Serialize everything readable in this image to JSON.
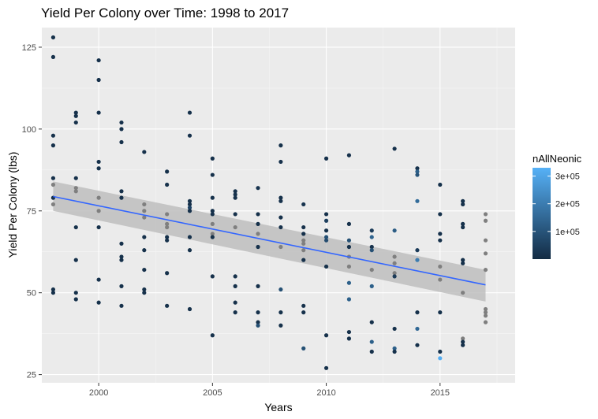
{
  "chart_data": {
    "type": "scatter",
    "title": "Yield Per Colony over Time: 1998 to 2017",
    "xlabel": "Years",
    "ylabel": "Yield Per Colony (lbs)",
    "xlim": [
      1997.5,
      2018.3
    ],
    "ylim": [
      22.5,
      131
    ],
    "x_ticks": [
      2000,
      2005,
      2010,
      2015
    ],
    "x_tick_labels": [
      "2000",
      "2005",
      "2010",
      "2015"
    ],
    "y_ticks": [
      25,
      50,
      75,
      100,
      125
    ],
    "y_tick_labels": [
      "25",
      "50",
      "75",
      "100",
      "125"
    ],
    "grid": true,
    "legend": {
      "title": "nAllNeonic",
      "type": "colorbar",
      "placement": "right",
      "range": [
        0,
        330000
      ],
      "ticks": [
        100000,
        200000,
        300000
      ],
      "tick_labels": [
        "1e+05",
        "2e+05",
        "3e+05"
      ],
      "low_color": "#132B43",
      "high_color": "#56B1F7",
      "na_color": "#7f7f7f"
    },
    "trend_line": {
      "method": "lm",
      "color": "#3366FF",
      "ci_color": "#bebebe",
      "points": [
        [
          1998,
          79.4
        ],
        [
          2017,
          52.4
        ]
      ],
      "ci_lower": [
        [
          1998,
          75
        ],
        [
          2017,
          47.3
        ]
      ],
      "ci_upper": [
        [
          1998,
          84
        ],
        [
          2017,
          57
        ]
      ]
    },
    "points": [
      {
        "x": 1998,
        "y": 128,
        "c": 15000
      },
      {
        "x": 1998,
        "y": 122,
        "c": 15000
      },
      {
        "x": 1998,
        "y": 98,
        "c": 15000
      },
      {
        "x": 1998,
        "y": 95,
        "c": 15000
      },
      {
        "x": 1998,
        "y": 85,
        "c": 15000
      },
      {
        "x": 1998,
        "y": 83,
        "c": null
      },
      {
        "x": 1998,
        "y": 79,
        "c": 15000
      },
      {
        "x": 1998,
        "y": 77,
        "c": null
      },
      {
        "x": 1998,
        "y": 51,
        "c": 15000
      },
      {
        "x": 1998,
        "y": 50,
        "c": 15000
      },
      {
        "x": 1999,
        "y": 105,
        "c": 15000
      },
      {
        "x": 1999,
        "y": 104,
        "c": 15000
      },
      {
        "x": 1999,
        "y": 102,
        "c": 15000
      },
      {
        "x": 1999,
        "y": 85,
        "c": 15000
      },
      {
        "x": 1999,
        "y": 82,
        "c": null
      },
      {
        "x": 1999,
        "y": 81,
        "c": null
      },
      {
        "x": 1999,
        "y": 70,
        "c": 15000
      },
      {
        "x": 1999,
        "y": 60,
        "c": 15000
      },
      {
        "x": 1999,
        "y": 50,
        "c": 15000
      },
      {
        "x": 1999,
        "y": 48,
        "c": 15000
      },
      {
        "x": 2000,
        "y": 121,
        "c": 15000
      },
      {
        "x": 2000,
        "y": 115,
        "c": 15000
      },
      {
        "x": 2000,
        "y": 105,
        "c": 15000
      },
      {
        "x": 2000,
        "y": 90,
        "c": 15000
      },
      {
        "x": 2000,
        "y": 88,
        "c": 15000
      },
      {
        "x": 2000,
        "y": 79,
        "c": null
      },
      {
        "x": 2000,
        "y": 75,
        "c": null
      },
      {
        "x": 2000,
        "y": 70,
        "c": 15000
      },
      {
        "x": 2000,
        "y": 54,
        "c": 15000
      },
      {
        "x": 2000,
        "y": 47,
        "c": 15000
      },
      {
        "x": 2001,
        "y": 102,
        "c": 15000
      },
      {
        "x": 2001,
        "y": 100,
        "c": 15000
      },
      {
        "x": 2001,
        "y": 96,
        "c": 15000
      },
      {
        "x": 2001,
        "y": 81,
        "c": 15000
      },
      {
        "x": 2001,
        "y": 79,
        "c": 15000
      },
      {
        "x": 2001,
        "y": 65,
        "c": 15000
      },
      {
        "x": 2001,
        "y": 61,
        "c": 15000
      },
      {
        "x": 2001,
        "y": 60,
        "c": 15000
      },
      {
        "x": 2001,
        "y": 52,
        "c": 15000
      },
      {
        "x": 2001,
        "y": 46,
        "c": 15000
      },
      {
        "x": 2002,
        "y": 93,
        "c": 15000
      },
      {
        "x": 2002,
        "y": 77,
        "c": null
      },
      {
        "x": 2002,
        "y": 75,
        "c": null
      },
      {
        "x": 2002,
        "y": 73,
        "c": null
      },
      {
        "x": 2002,
        "y": 67,
        "c": 15000
      },
      {
        "x": 2002,
        "y": 63,
        "c": 15000
      },
      {
        "x": 2002,
        "y": 57,
        "c": 15000
      },
      {
        "x": 2002,
        "y": 51,
        "c": 15000
      },
      {
        "x": 2002,
        "y": 50,
        "c": 15000
      },
      {
        "x": 2003,
        "y": 87,
        "c": 15000
      },
      {
        "x": 2003,
        "y": 83,
        "c": 15000
      },
      {
        "x": 2003,
        "y": 74,
        "c": null
      },
      {
        "x": 2003,
        "y": 71,
        "c": null
      },
      {
        "x": 2003,
        "y": 70,
        "c": null
      },
      {
        "x": 2003,
        "y": 67,
        "c": 15000
      },
      {
        "x": 2003,
        "y": 66,
        "c": 15000
      },
      {
        "x": 2003,
        "y": 56,
        "c": 15000
      },
      {
        "x": 2003,
        "y": 46,
        "c": 15000
      },
      {
        "x": 2004,
        "y": 105,
        "c": 15000
      },
      {
        "x": 2004,
        "y": 98,
        "c": 15000
      },
      {
        "x": 2004,
        "y": 78,
        "c": 15000
      },
      {
        "x": 2004,
        "y": 77,
        "c": 15000
      },
      {
        "x": 2004,
        "y": 76,
        "c": 60000
      },
      {
        "x": 2004,
        "y": 75,
        "c": 15000
      },
      {
        "x": 2004,
        "y": 67,
        "c": 15000
      },
      {
        "x": 2004,
        "y": 63,
        "c": 15000
      },
      {
        "x": 2004,
        "y": 45,
        "c": 15000
      },
      {
        "x": 2005,
        "y": 91,
        "c": 15000
      },
      {
        "x": 2005,
        "y": 86,
        "c": 15000
      },
      {
        "x": 2005,
        "y": 79,
        "c": 15000
      },
      {
        "x": 2005,
        "y": 75,
        "c": 15000
      },
      {
        "x": 2005,
        "y": 74,
        "c": 15000
      },
      {
        "x": 2005,
        "y": 71,
        "c": null
      },
      {
        "x": 2005,
        "y": 68,
        "c": null
      },
      {
        "x": 2005,
        "y": 67,
        "c": 15000
      },
      {
        "x": 2005,
        "y": 55,
        "c": 15000
      },
      {
        "x": 2005,
        "y": 37,
        "c": 15000
      },
      {
        "x": 2006,
        "y": 81,
        "c": 15000
      },
      {
        "x": 2006,
        "y": 80,
        "c": 15000
      },
      {
        "x": 2006,
        "y": 79,
        "c": 15000
      },
      {
        "x": 2006,
        "y": 74,
        "c": 15000
      },
      {
        "x": 2006,
        "y": 70,
        "c": null
      },
      {
        "x": 2006,
        "y": 55,
        "c": 15000
      },
      {
        "x": 2006,
        "y": 52,
        "c": 15000
      },
      {
        "x": 2006,
        "y": 47,
        "c": 15000
      },
      {
        "x": 2006,
        "y": 44,
        "c": 15000
      },
      {
        "x": 2007,
        "y": 82,
        "c": 20000
      },
      {
        "x": 2007,
        "y": 74,
        "c": 15000
      },
      {
        "x": 2007,
        "y": 71,
        "c": 15000
      },
      {
        "x": 2007,
        "y": 68,
        "c": null
      },
      {
        "x": 2007,
        "y": 64,
        "c": 15000
      },
      {
        "x": 2007,
        "y": 52,
        "c": 15000
      },
      {
        "x": 2007,
        "y": 44,
        "c": 15000
      },
      {
        "x": 2007,
        "y": 41,
        "c": 15000
      },
      {
        "x": 2007,
        "y": 40,
        "c": 90000
      },
      {
        "x": 2008,
        "y": 95,
        "c": 15000
      },
      {
        "x": 2008,
        "y": 90,
        "c": 15000
      },
      {
        "x": 2008,
        "y": 79,
        "c": 15000
      },
      {
        "x": 2008,
        "y": 78,
        "c": 15000
      },
      {
        "x": 2008,
        "y": 73,
        "c": 15000
      },
      {
        "x": 2008,
        "y": 70,
        "c": 15000
      },
      {
        "x": 2008,
        "y": 64,
        "c": null
      },
      {
        "x": 2008,
        "y": 51,
        "c": 90000
      },
      {
        "x": 2008,
        "y": 44,
        "c": 15000
      },
      {
        "x": 2008,
        "y": 40,
        "c": 15000
      },
      {
        "x": 2009,
        "y": 77,
        "c": 20000
      },
      {
        "x": 2009,
        "y": 70,
        "c": 15000
      },
      {
        "x": 2009,
        "y": 68,
        "c": 15000
      },
      {
        "x": 2009,
        "y": 66,
        "c": null
      },
      {
        "x": 2009,
        "y": 65,
        "c": null
      },
      {
        "x": 2009,
        "y": 63,
        "c": null
      },
      {
        "x": 2009,
        "y": 60,
        "c": 15000
      },
      {
        "x": 2009,
        "y": 46,
        "c": 15000
      },
      {
        "x": 2009,
        "y": 44,
        "c": 15000
      },
      {
        "x": 2009,
        "y": 33,
        "c": 90000
      },
      {
        "x": 2010,
        "y": 91,
        "c": 15000
      },
      {
        "x": 2010,
        "y": 74,
        "c": 15000
      },
      {
        "x": 2010,
        "y": 72,
        "c": 50000
      },
      {
        "x": 2010,
        "y": 69,
        "c": 15000
      },
      {
        "x": 2010,
        "y": 67,
        "c": 90000
      },
      {
        "x": 2010,
        "y": 66,
        "c": 80000
      },
      {
        "x": 2010,
        "y": 58,
        "c": 15000
      },
      {
        "x": 2010,
        "y": 37,
        "c": 15000
      },
      {
        "x": 2010,
        "y": 27,
        "c": 15000
      },
      {
        "x": 2011,
        "y": 92,
        "c": 15000
      },
      {
        "x": 2011,
        "y": 71,
        "c": 15000
      },
      {
        "x": 2011,
        "y": 66,
        "c": 90000
      },
      {
        "x": 2011,
        "y": 64,
        "c": 15000
      },
      {
        "x": 2011,
        "y": 61,
        "c": null
      },
      {
        "x": 2011,
        "y": 58,
        "c": null
      },
      {
        "x": 2011,
        "y": 53,
        "c": 130000
      },
      {
        "x": 2011,
        "y": 48,
        "c": 130000
      },
      {
        "x": 2011,
        "y": 38,
        "c": 15000
      },
      {
        "x": 2011,
        "y": 36,
        "c": 15000
      },
      {
        "x": 2012,
        "y": 69,
        "c": 40000
      },
      {
        "x": 2012,
        "y": 67,
        "c": 140000
      },
      {
        "x": 2012,
        "y": 64,
        "c": 15000
      },
      {
        "x": 2012,
        "y": 63,
        "c": 90000
      },
      {
        "x": 2012,
        "y": 57,
        "c": null
      },
      {
        "x": 2012,
        "y": 52,
        "c": 130000
      },
      {
        "x": 2012,
        "y": 41,
        "c": 15000
      },
      {
        "x": 2012,
        "y": 35,
        "c": 130000
      },
      {
        "x": 2012,
        "y": 32,
        "c": 15000
      },
      {
        "x": 2013,
        "y": 94,
        "c": 15000
      },
      {
        "x": 2013,
        "y": 69,
        "c": 120000
      },
      {
        "x": 2013,
        "y": 61,
        "c": null
      },
      {
        "x": 2013,
        "y": 59,
        "c": null
      },
      {
        "x": 2013,
        "y": 56,
        "c": null
      },
      {
        "x": 2013,
        "y": 55,
        "c": 40000
      },
      {
        "x": 2013,
        "y": 39,
        "c": 15000
      },
      {
        "x": 2013,
        "y": 33,
        "c": 130000
      },
      {
        "x": 2013,
        "y": 32,
        "c": 15000
      },
      {
        "x": 2014,
        "y": 88,
        "c": 15000
      },
      {
        "x": 2014,
        "y": 87,
        "c": 130000
      },
      {
        "x": 2014,
        "y": 86,
        "c": 100000
      },
      {
        "x": 2014,
        "y": 78,
        "c": 160000
      },
      {
        "x": 2014,
        "y": 63,
        "c": 40000
      },
      {
        "x": 2014,
        "y": 60,
        "c": 200000
      },
      {
        "x": 2014,
        "y": 44,
        "c": 15000
      },
      {
        "x": 2014,
        "y": 39,
        "c": 150000
      },
      {
        "x": 2014,
        "y": 34,
        "c": 15000
      },
      {
        "x": 2015,
        "y": 83,
        "c": 15000
      },
      {
        "x": 2015,
        "y": 74,
        "c": 15000
      },
      {
        "x": 2015,
        "y": 68,
        "c": 15000
      },
      {
        "x": 2015,
        "y": 66,
        "c": 15000
      },
      {
        "x": 2015,
        "y": 58,
        "c": null
      },
      {
        "x": 2015,
        "y": 54,
        "c": null
      },
      {
        "x": 2015,
        "y": 44,
        "c": 15000
      },
      {
        "x": 2015,
        "y": 32,
        "c": 15000
      },
      {
        "x": 2015,
        "y": 30,
        "c": 320000
      },
      {
        "x": 2016,
        "y": 78,
        "c": 15000
      },
      {
        "x": 2016,
        "y": 77,
        "c": 15000
      },
      {
        "x": 2016,
        "y": 71,
        "c": 15000
      },
      {
        "x": 2016,
        "y": 70,
        "c": 15000
      },
      {
        "x": 2016,
        "y": 60,
        "c": 15000
      },
      {
        "x": 2016,
        "y": 59,
        "c": 15000
      },
      {
        "x": 2016,
        "y": 50,
        "c": null
      },
      {
        "x": 2016,
        "y": 36,
        "c": null
      },
      {
        "x": 2016,
        "y": 35,
        "c": 15000
      },
      {
        "x": 2016,
        "y": 34,
        "c": 15000
      },
      {
        "x": 2017,
        "y": 74,
        "c": null
      },
      {
        "x": 2017,
        "y": 72,
        "c": null
      },
      {
        "x": 2017,
        "y": 66,
        "c": null
      },
      {
        "x": 2017,
        "y": 62,
        "c": null
      },
      {
        "x": 2017,
        "y": 57,
        "c": null
      },
      {
        "x": 2017,
        "y": 45,
        "c": null
      },
      {
        "x": 2017,
        "y": 44,
        "c": null
      },
      {
        "x": 2017,
        "y": 43,
        "c": null
      },
      {
        "x": 2017,
        "y": 41,
        "c": null
      }
    ]
  }
}
